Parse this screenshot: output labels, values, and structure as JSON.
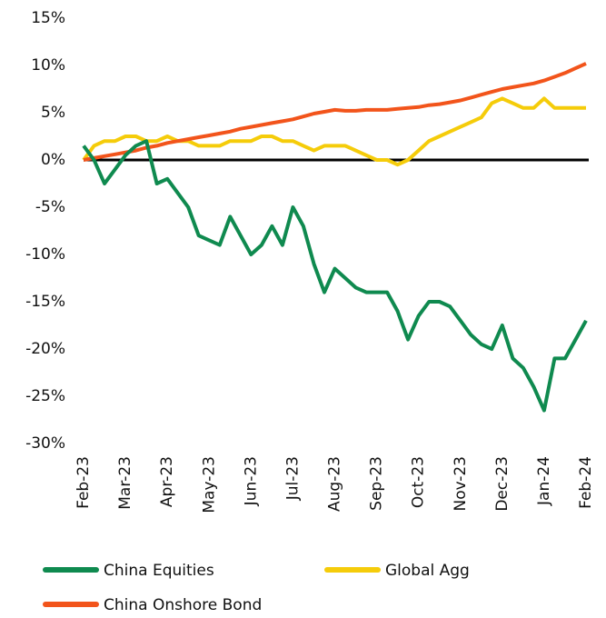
{
  "chart_data": {
    "type": "line",
    "categories": [
      "Feb-23",
      null,
      null,
      null,
      "Mar-23",
      null,
      null,
      null,
      "Apr-23",
      null,
      null,
      null,
      "May-23",
      null,
      null,
      null,
      "Jun-23",
      null,
      null,
      null,
      "Jul-23",
      null,
      null,
      null,
      "Aug-23",
      null,
      null,
      null,
      "Sep-23",
      null,
      null,
      null,
      "Oct-23",
      null,
      null,
      null,
      "Nov-23",
      null,
      null,
      null,
      "Dec-23",
      null,
      null,
      null,
      "Jan-24",
      null,
      null,
      null,
      "Feb-24"
    ],
    "series": [
      {
        "name": "China Equities",
        "color": "#0f8a4f",
        "values": [
          1.5,
          0,
          -2.5,
          -1,
          0.5,
          1.5,
          2,
          -2.5,
          -2,
          -3.5,
          -5,
          -8,
          -8.5,
          -9,
          -6,
          -8,
          -10,
          -9,
          -7,
          -9,
          -5,
          -7,
          -11,
          -14,
          -11.5,
          -12.5,
          -13.5,
          -14,
          -14,
          -14,
          -16,
          -19,
          -16.5,
          -15,
          -15,
          -15.5,
          -17,
          -18.5,
          -19.5,
          -20,
          -17.5,
          -21,
          -22,
          -24,
          -26.5,
          -21,
          -21,
          -19,
          -17
        ]
      },
      {
        "name": "Global Agg",
        "color": "#f5cc0a",
        "values": [
          0,
          1.5,
          2,
          2,
          2.5,
          2.5,
          2,
          2,
          2.5,
          2,
          2,
          1.5,
          1.5,
          1.5,
          2,
          2,
          2,
          2.5,
          2.5,
          2,
          2,
          1.5,
          1,
          1.5,
          1.5,
          1.5,
          1,
          0.5,
          0,
          0,
          -0.5,
          0,
          1,
          2,
          2.5,
          3,
          3.5,
          4,
          4.5,
          6,
          6.5,
          6,
          5.5,
          5.5,
          6.5,
          5.5,
          5.5,
          5.5,
          5.5
        ]
      },
      {
        "name": "China Onshore Bond",
        "color": "#f2541b",
        "values": [
          0,
          0.2,
          0.4,
          0.6,
          0.8,
          1.0,
          1.3,
          1.5,
          1.8,
          2.0,
          2.2,
          2.4,
          2.6,
          2.8,
          3.0,
          3.3,
          3.5,
          3.7,
          3.9,
          4.1,
          4.3,
          4.6,
          4.9,
          5.1,
          5.3,
          5.2,
          5.2,
          5.3,
          5.3,
          5.3,
          5.4,
          5.5,
          5.6,
          5.8,
          5.9,
          6.1,
          6.3,
          6.6,
          6.9,
          7.2,
          7.5,
          7.7,
          7.9,
          8.1,
          8.4,
          8.8,
          9.2,
          9.7,
          10.2
        ]
      }
    ],
    "ylim": [
      -30,
      15
    ],
    "yticks": [
      {
        "value": -30,
        "label": "-30%"
      },
      {
        "value": -25,
        "label": "-25%"
      },
      {
        "value": -20,
        "label": "-20%"
      },
      {
        "value": -15,
        "label": "-15%"
      },
      {
        "value": -10,
        "label": "-10%"
      },
      {
        "value": -5,
        "label": "-5%"
      },
      {
        "value": 0,
        "label": "0%"
      },
      {
        "value": 5,
        "label": "5%"
      },
      {
        "value": 10,
        "label": "10%"
      },
      {
        "value": 15,
        "label": "15%"
      }
    ],
    "grid": false
  }
}
